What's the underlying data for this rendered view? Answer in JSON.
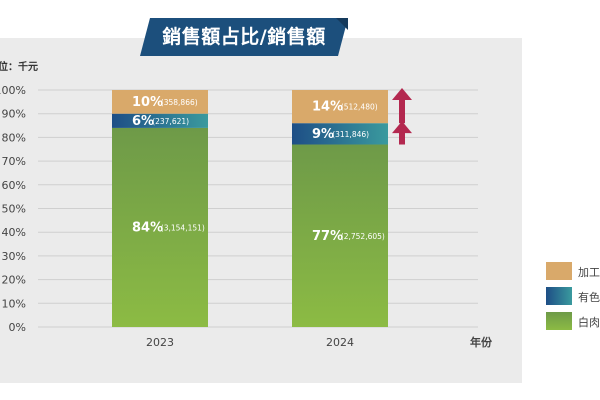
{
  "title": "銷售額占比/銷售額",
  "unit_label": "位：千元",
  "x_axis_title": "年份",
  "colors": {
    "processed": "#d9a96a",
    "nonferrous_top": "#1e4e86",
    "nonferrous_bottom": "#3a9a9e",
    "white_top": "#6e9a48",
    "white_bottom": "#8cbb44",
    "arrow": "#b3284f",
    "banner": "#1c4f7c"
  },
  "legend": [
    {
      "key": "processed",
      "label": "加工"
    },
    {
      "key": "nonferrous",
      "label": "有色"
    },
    {
      "key": "white",
      "label": "白肉"
    }
  ],
  "chart_data": {
    "type": "bar",
    "stacked": true,
    "categories": [
      "2023",
      "2024"
    ],
    "ylim": [
      0,
      100
    ],
    "yticks": [
      "0%",
      "10%",
      "20%",
      "30%",
      "40%",
      "50%",
      "60%",
      "70%",
      "80%",
      "90%",
      "100%"
    ],
    "series": [
      {
        "key": "white",
        "name": "白肉",
        "values": [
          84,
          77
        ],
        "pct_labels": [
          "84%",
          "77%"
        ],
        "amount_labels": [
          "(3,154,151)",
          "(2,752,605)"
        ]
      },
      {
        "key": "nonferrous",
        "name": "有色",
        "values": [
          6,
          9
        ],
        "pct_labels": [
          "6%",
          "9%"
        ],
        "amount_labels": [
          "(237,621)",
          "(311,846)"
        ]
      },
      {
        "key": "processed",
        "name": "加工",
        "values": [
          10,
          14
        ],
        "pct_labels": [
          "10%",
          "14%"
        ],
        "amount_labels": [
          "(358,866)",
          "(512,480)"
        ]
      }
    ],
    "grid": true,
    "legend_position": "right",
    "increase_arrows": {
      "category": "2024",
      "series": [
        "nonferrous",
        "processed"
      ]
    }
  }
}
